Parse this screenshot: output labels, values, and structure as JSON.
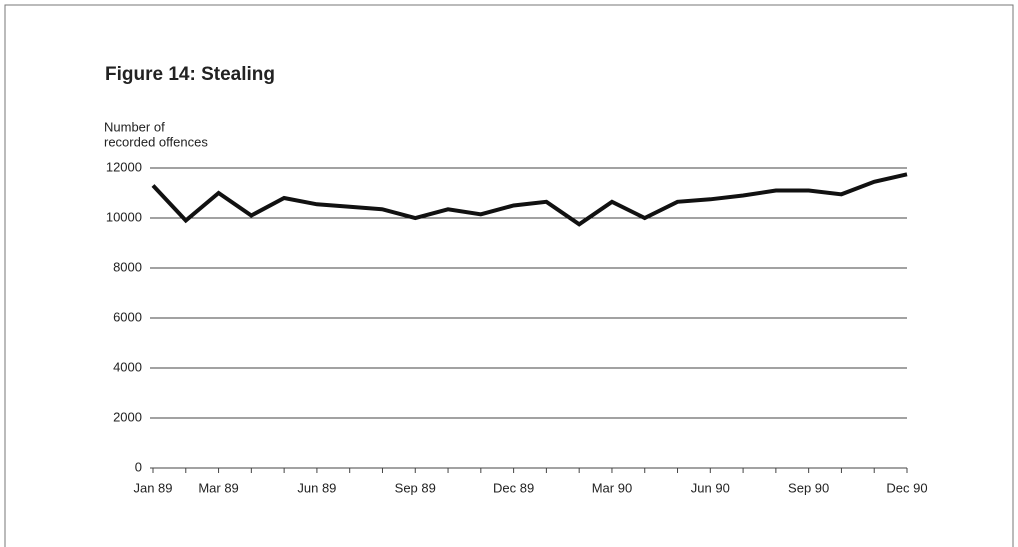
{
  "chart_data": {
    "type": "line",
    "title": "Figure 14:  Stealing",
    "ylabel_lines": [
      "Number of",
      "recorded offences"
    ],
    "categories": [
      "Jan 89",
      null,
      "Mar 89",
      null,
      null,
      "Jun 89",
      null,
      null,
      "Sep 89",
      null,
      null,
      "Dec 89",
      null,
      null,
      "Mar 90",
      null,
      null,
      "Jun 90",
      null,
      null,
      "Sep 90",
      null,
      null,
      "Dec 90"
    ],
    "values": [
      11300,
      9900,
      11000,
      10100,
      10800,
      10550,
      10450,
      10350,
      10000,
      10350,
      10150,
      10500,
      10650,
      9750,
      10650,
      10000,
      10650,
      10750,
      10900,
      11100,
      11100,
      10950,
      11450,
      11750
    ],
    "color": "#111111",
    "ylim": [
      0,
      12000
    ],
    "yticks": [
      0,
      2000,
      4000,
      6000,
      8000,
      10000,
      12000
    ],
    "grid": true
  }
}
